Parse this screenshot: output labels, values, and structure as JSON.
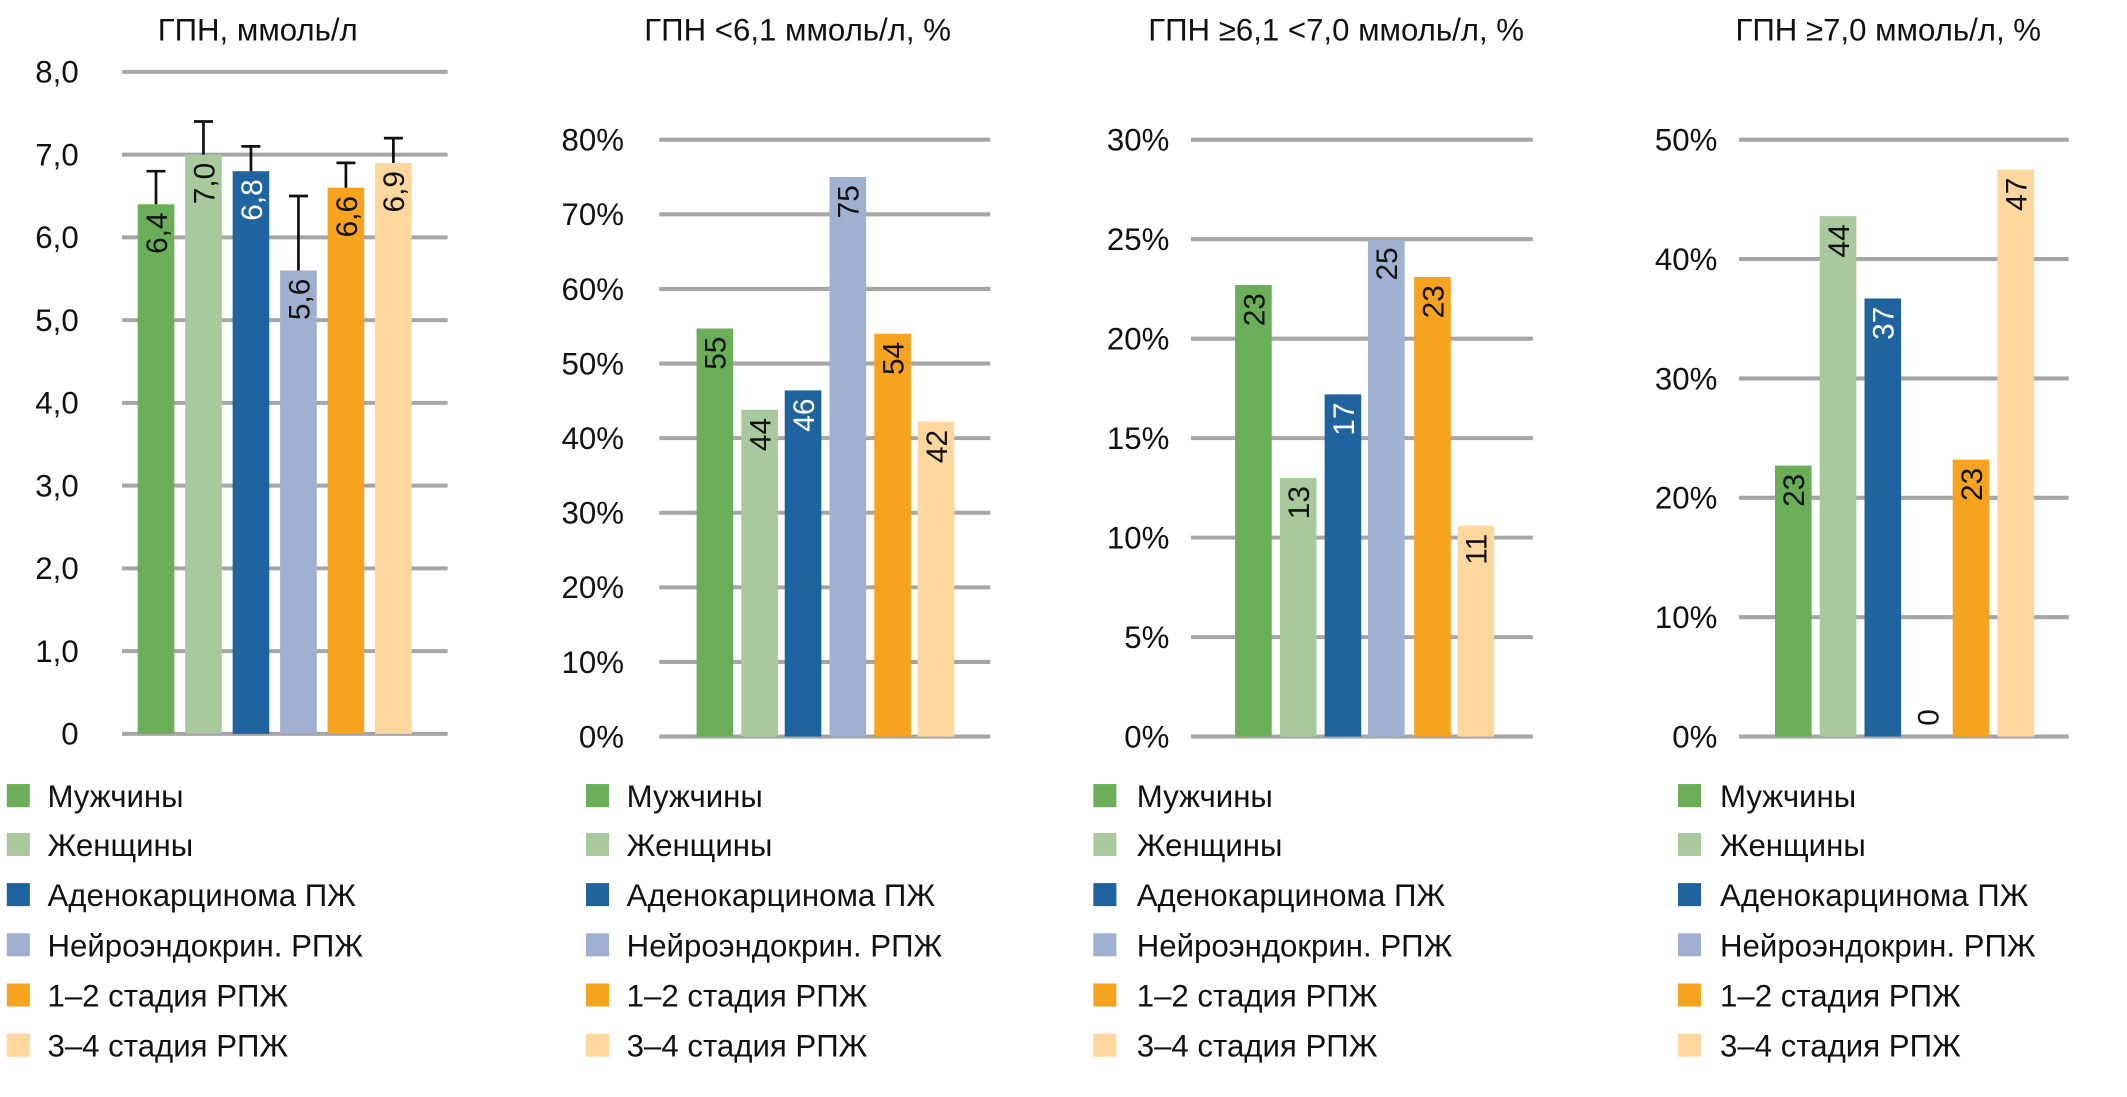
{
  "legend": [
    "Мужчины",
    "Женщины",
    "Аденокарцинома ПЖ",
    "Нейроэндокрин. РПЖ",
    "1–2 стадия РПЖ",
    "3–4 стадия РПЖ"
  ],
  "colors": [
    "#6aaf57",
    "#a7c99b",
    "#20649f",
    "#9fb0d0",
    "#f6a31f",
    "#fdd79d"
  ],
  "label_colors": [
    "#111111",
    "#111111",
    "#ffffff",
    "#111111",
    "#111111",
    "#111111"
  ],
  "chart_data": [
    {
      "type": "bar",
      "title": "ГПН, ммоль/л",
      "categories": [
        "Мужчины",
        "Женщины",
        "Аденокарцинома ПЖ",
        "Нейроэндокрин. РПЖ",
        "1–2 стадия РПЖ",
        "3–4 стадия РПЖ"
      ],
      "values": [
        6.4,
        7.0,
        6.8,
        5.6,
        6.6,
        6.9
      ],
      "error_upper": [
        6.8,
        7.4,
        7.1,
        6.5,
        6.9,
        7.2
      ],
      "data_labels": [
        "6,4",
        "7,0",
        "6,8",
        "5,6",
        "6,6",
        "6,9"
      ],
      "ylim": [
        0,
        8
      ],
      "ticks": [
        "0",
        "1,0",
        "2,0",
        "3,0",
        "4,0",
        "5,0",
        "6,0",
        "7,0",
        "8,0"
      ],
      "grid": true,
      "legend_position": "bottom"
    },
    {
      "type": "bar",
      "title": "ГПН <6,1 ммоль/л, %",
      "categories": [
        "Мужчины",
        "Женщины",
        "Аденокарцинома ПЖ",
        "Нейроэндокрин. РПЖ",
        "1–2 стадия РПЖ",
        "3–4 стадия РПЖ"
      ],
      "values": [
        54.7,
        43.8,
        46.4,
        75,
        54,
        42.2
      ],
      "data_labels": [
        "55",
        "44",
        "46",
        "75",
        "54",
        "42"
      ],
      "ylim": [
        0,
        80
      ],
      "ticks": [
        "0%",
        "10%",
        "20%",
        "30%",
        "40%",
        "50%",
        "60%",
        "70%",
        "80%"
      ],
      "grid": true,
      "legend_position": "bottom"
    },
    {
      "type": "bar",
      "title": "ГПН ≥6,1 <7,0 ммоль/л, %",
      "categories": [
        "Мужчины",
        "Женщины",
        "Аденокарцинома ПЖ",
        "Нейроэндокрин. РПЖ",
        "1–2 стадия РПЖ",
        "3–4 стадия РПЖ"
      ],
      "values": [
        22.7,
        13,
        17.2,
        25,
        23.1,
        10.6
      ],
      "data_labels": [
        "23",
        "13",
        "17",
        "25",
        "23",
        "11"
      ],
      "ylim": [
        0,
        30
      ],
      "ticks": [
        "0%",
        "5%",
        "10%",
        "15%",
        "20%",
        "25%",
        "30%"
      ],
      "grid": true,
      "legend_position": "bottom"
    },
    {
      "type": "bar",
      "title": "ГПН ≥7,0 ммоль/л, %",
      "categories": [
        "Мужчины",
        "Женщины",
        "Аденокарцинома ПЖ",
        "Нейроэндокрин. РПЖ",
        "1–2 стадия РПЖ",
        "3–4 стадия РПЖ"
      ],
      "values": [
        22.7,
        43.6,
        36.7,
        0,
        23.2,
        47.5
      ],
      "data_labels": [
        "23",
        "44",
        "37",
        "0",
        "23",
        "47"
      ],
      "ylim": [
        0,
        50
      ],
      "ticks": [
        "0%",
        "10%",
        "20%",
        "30%",
        "40%",
        "50%"
      ],
      "grid": true,
      "legend_position": "bottom"
    }
  ]
}
